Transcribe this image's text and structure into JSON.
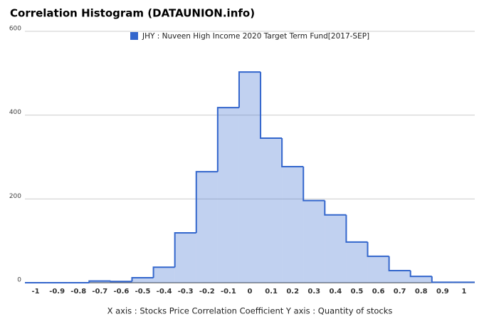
{
  "chart_data": {
    "type": "step-area",
    "title": "Correlation Histogram (DATAUNION.info)",
    "xlabel": "X axis : Stocks Price Correlation Coefficient  Y axis : Quantity of stocks",
    "categories": [
      "-1",
      "-0.9",
      "-0.8",
      "-0.7",
      "-0.6",
      "-0.5",
      "-0.4",
      "-0.3",
      "-0.2",
      "-0.1",
      "0",
      "0.1",
      "0.2",
      "0.3",
      "0.4",
      "0.5",
      "0.6",
      "0.7",
      "0.8",
      "0.9",
      "1"
    ],
    "series": [
      {
        "name": "JHY : Nuveen High Income 2020 Target Term Fund[2017-SEP]",
        "color": "#3366cc",
        "values": [
          0,
          0,
          0,
          4,
          3,
          12,
          37,
          119,
          265,
          418,
          503,
          345,
          277,
          196,
          162,
          97,
          63,
          29,
          15,
          1,
          1
        ]
      }
    ],
    "ylim": [
      0,
      600
    ],
    "yticks": [
      0,
      200,
      400,
      600
    ],
    "grid": true
  }
}
